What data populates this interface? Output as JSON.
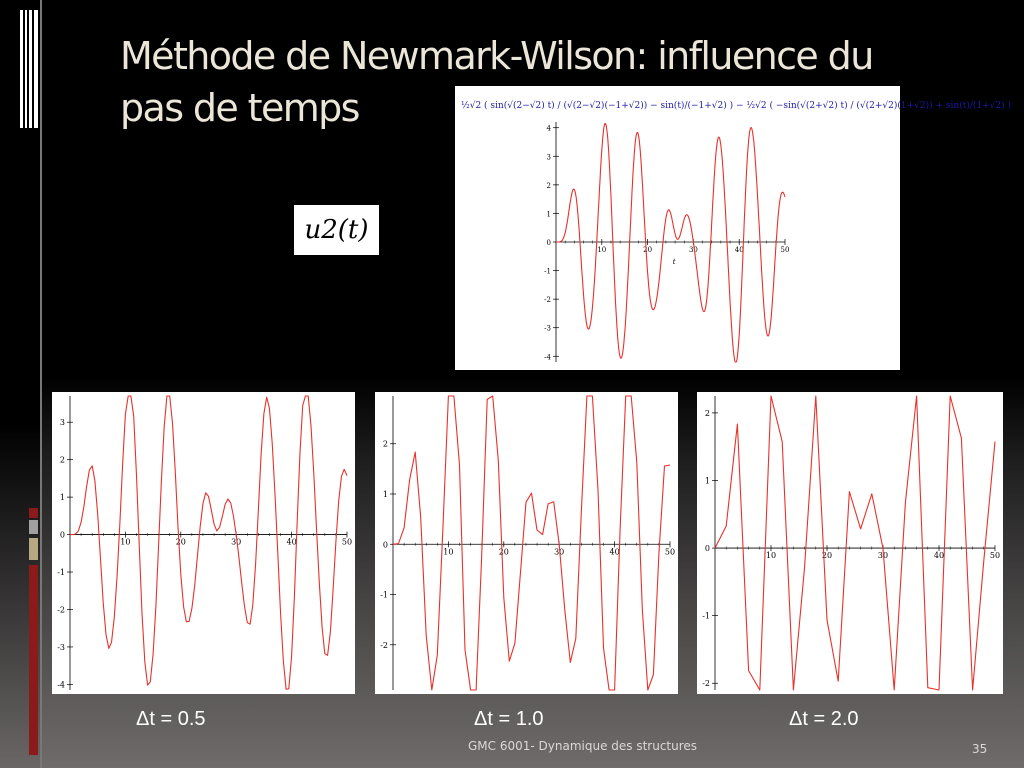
{
  "slide": {
    "title_line1": "Méthode de Newmark-Wilson: influence du",
    "title_line2": "pas de temps",
    "label_u2": "u2(t)",
    "footer": "GMC 6001-  Dynamique des structures",
    "page_number": "35",
    "accent_colors": [
      "#8b1a1a",
      "#a0a0a0",
      "#b5a882"
    ]
  },
  "chart_data": [
    {
      "type": "line",
      "panel": "exact",
      "formula_text": "½√2 ( sin(√(2−√2) t) / (√(2−√2)(−1+√2)) − sin(t)/(−1+√2) ) − ½√2 ( −sin(√(2+√2) t) / (√(2+√2)(1+√2)) + sin(t)/(1+√2) )",
      "xlabel": "t",
      "xticks": [
        10,
        20,
        30,
        40,
        50
      ],
      "yticks": [
        4,
        3,
        2,
        1,
        0,
        -1,
        -2,
        -3,
        -4
      ],
      "xlim": [
        0,
        50
      ],
      "ylim": [
        -4.2,
        4.2
      ],
      "series": [
        {
          "color": "#e8312b",
          "sampling_step": 0.1
        }
      ]
    },
    {
      "type": "line",
      "panel": "dt_0.5",
      "caption": "Δt = 0.5",
      "dt": 0.5,
      "xticks": [
        10,
        20,
        30,
        40,
        50
      ],
      "yticks": [
        3,
        2,
        1,
        0,
        -1,
        -2,
        -3,
        -4
      ],
      "xlim": [
        0,
        50
      ],
      "ylim": [
        -4.15,
        3.7
      ],
      "series": [
        {
          "color": "#e8312b",
          "sampling_step": 0.5
        }
      ]
    },
    {
      "type": "line",
      "panel": "dt_1.0",
      "caption": "Δt = 1.0",
      "dt": 1.0,
      "xticks": [
        10,
        20,
        30,
        40,
        50
      ],
      "yticks": [
        2,
        1,
        0,
        -1,
        -2
      ],
      "xlim": [
        0,
        50
      ],
      "ylim": [
        -2.9,
        2.95
      ],
      "series": [
        {
          "color": "#e8312b",
          "sampling_step": 1.0
        }
      ]
    },
    {
      "type": "line",
      "panel": "dt_2.0",
      "caption": "Δt = 2.0",
      "dt": 2.0,
      "xticks": [
        10,
        20,
        30,
        40,
        50
      ],
      "yticks": [
        2,
        1,
        0,
        -1,
        -2
      ],
      "xlim": [
        0,
        50
      ],
      "ylim": [
        -2.1,
        2.25
      ],
      "series": [
        {
          "color": "#e8312b",
          "sampling_step": 2.0
        }
      ]
    }
  ]
}
